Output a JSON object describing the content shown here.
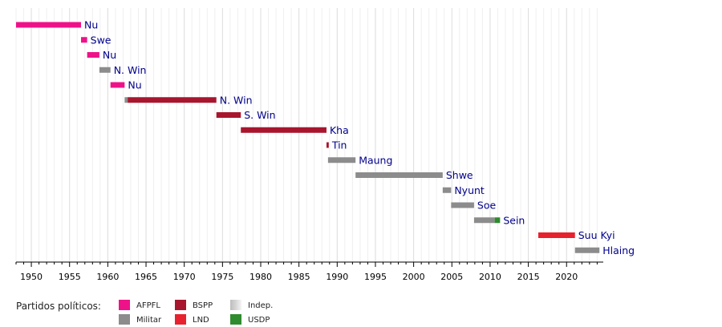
{
  "chart_data": {
    "type": "timeline",
    "xlim": [
      1948,
      2024.8
    ],
    "xticks": [
      1950,
      1955,
      1960,
      1965,
      1970,
      1975,
      1980,
      1985,
      1990,
      1995,
      2000,
      2005,
      2010,
      2015,
      2020
    ],
    "grid": true,
    "rows": [
      {
        "label": "Nu",
        "segments": [
          {
            "start": 1948.0,
            "end": 1956.5,
            "party": "AFPFL"
          }
        ]
      },
      {
        "label": "Swe",
        "segments": [
          {
            "start": 1956.5,
            "end": 1957.3,
            "party": "AFPFL"
          }
        ]
      },
      {
        "label": "Nu",
        "segments": [
          {
            "start": 1957.3,
            "end": 1958.9,
            "party": "AFPFL"
          }
        ]
      },
      {
        "label": "N. Win",
        "segments": [
          {
            "start": 1958.9,
            "end": 1960.35,
            "party": "Militar"
          }
        ]
      },
      {
        "label": "Nu",
        "segments": [
          {
            "start": 1960.35,
            "end": 1962.2,
            "party": "AFPFL"
          }
        ]
      },
      {
        "label": "N. Win",
        "segments": [
          {
            "start": 1962.2,
            "end": 1962.6,
            "party": "Militar"
          },
          {
            "start": 1962.6,
            "end": 1974.2,
            "party": "BSPP"
          }
        ]
      },
      {
        "label": "S. Win",
        "segments": [
          {
            "start": 1974.2,
            "end": 1977.4,
            "party": "BSPP"
          }
        ]
      },
      {
        "label": "Kha",
        "segments": [
          {
            "start": 1977.4,
            "end": 1988.6,
            "party": "BSPP"
          }
        ]
      },
      {
        "label": "Tin",
        "segments": [
          {
            "start": 1988.6,
            "end": 1988.9,
            "party": "BSPP"
          }
        ]
      },
      {
        "label": "Maung",
        "segments": [
          {
            "start": 1988.8,
            "end": 1992.4,
            "party": "Militar"
          }
        ]
      },
      {
        "label": "Shwe",
        "segments": [
          {
            "start": 1992.4,
            "end": 2003.8,
            "party": "Militar"
          }
        ]
      },
      {
        "label": "Nyunt",
        "segments": [
          {
            "start": 2003.8,
            "end": 2004.9,
            "party": "Militar"
          }
        ]
      },
      {
        "label": "Soe",
        "segments": [
          {
            "start": 2004.9,
            "end": 2007.9,
            "party": "Militar"
          }
        ]
      },
      {
        "label": "Sein",
        "segments": [
          {
            "start": 2007.9,
            "end": 2010.6,
            "party": "Militar"
          },
          {
            "start": 2010.6,
            "end": 2011.3,
            "party": "USDP"
          }
        ]
      },
      {
        "label": "Suu Kyi",
        "segments": [
          {
            "start": 2016.3,
            "end": 2021.1,
            "party": "LND"
          }
        ]
      },
      {
        "label": "Hlaing",
        "segments": [
          {
            "start": 2021.1,
            "end": 2024.3,
            "party": "Militar"
          }
        ]
      }
    ]
  },
  "legend": {
    "title": "Partidos políticos:",
    "items": [
      {
        "key": "AFPFL",
        "label": "AFPFL",
        "color": "#ee1289"
      },
      {
        "key": "Militar",
        "label": "Militar",
        "color": "#8c8c8c"
      },
      {
        "key": "BSPP",
        "label": "BSPP",
        "color": "#a8162e"
      },
      {
        "key": "LND",
        "label": "LND",
        "color": "#e8212e"
      },
      {
        "key": "Indep",
        "label": "Indep.",
        "color": "#d6d6d6"
      },
      {
        "key": "USDP",
        "label": "USDP",
        "color": "#2e8b2e"
      }
    ]
  },
  "colors": {
    "AFPFL": "#ee1289",
    "Militar": "#8c8c8c",
    "BSPP": "#a8162e",
    "LND": "#e8212e",
    "Indep": "#d6d6d6",
    "USDP": "#2e8b2e",
    "label": "#00008b",
    "grid_major": "#dcdcdc",
    "grid_minor": "#efefef"
  }
}
